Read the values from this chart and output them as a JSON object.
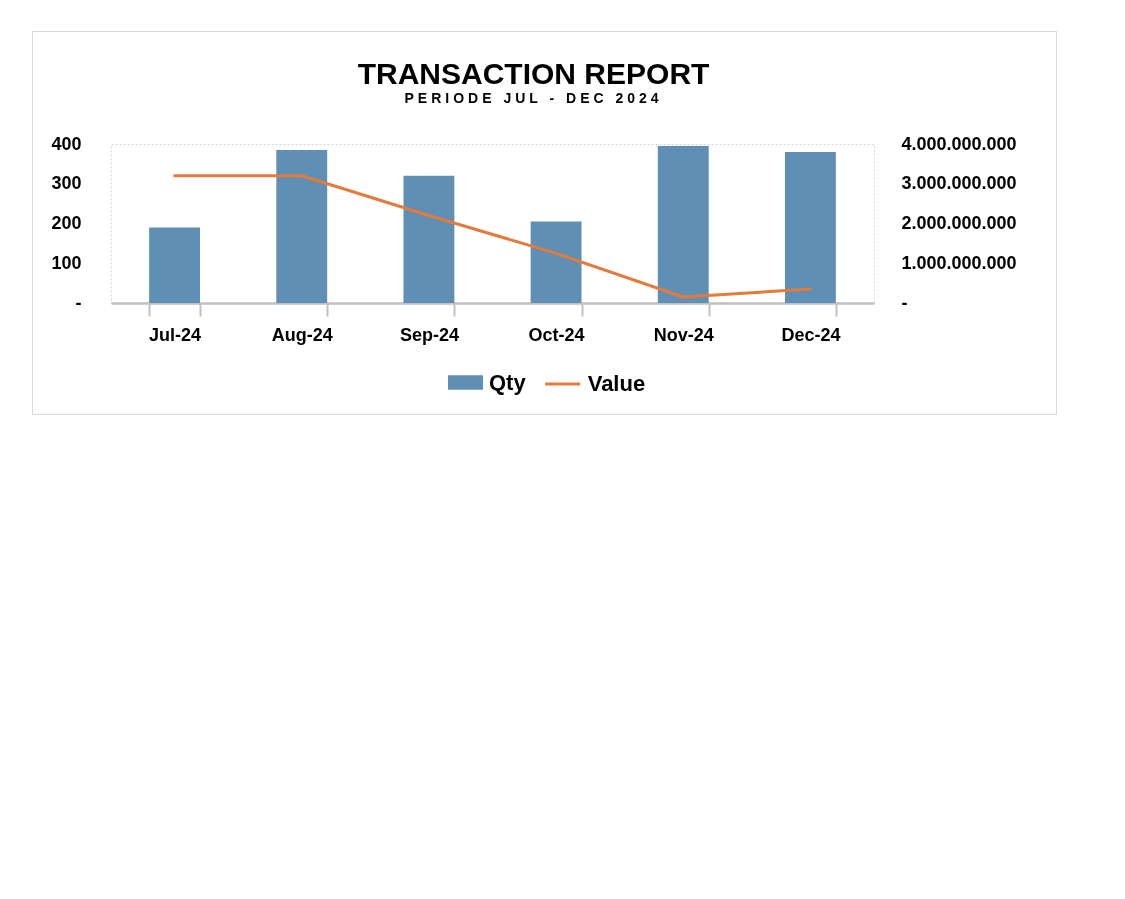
{
  "chart_data": {
    "type": "bar",
    "title": "TRANSACTION REPORT",
    "subtitle": "PERIODE JUL - DEC 2024",
    "categories": [
      "Jul-24",
      "Aug-24",
      "Sep-24",
      "Oct-24",
      "Nov-24",
      "Dec-24"
    ],
    "series": [
      {
        "name": "Qty",
        "color": "#5f8fb4",
        "values": [
          190,
          385,
          320,
          205,
          395,
          380
        ]
      },
      {
        "name": "Value",
        "type": "line",
        "axis": "y2",
        "color": "#e27b3b",
        "values": [
          3200000000,
          3200000000,
          2200000000,
          1250000000,
          150000000,
          350000000
        ]
      }
    ],
    "ylim": [
      0,
      400
    ],
    "yticks": [
      {
        "value": 0,
        "label": "-"
      },
      100,
      200,
      300,
      400
    ],
    "y2lim": [
      0,
      4000000000
    ],
    "y2ticks": [
      {
        "value": 0,
        "label": "-"
      },
      {
        "value": 1000000000,
        "label": "1.000.000.000"
      },
      {
        "value": 2000000000,
        "label": "2.000.000.000"
      },
      {
        "value": 3000000000,
        "label": "3.000.000.000"
      },
      {
        "value": 4000000000,
        "label": "4.000.000.000"
      }
    ],
    "legend": "bottom"
  }
}
